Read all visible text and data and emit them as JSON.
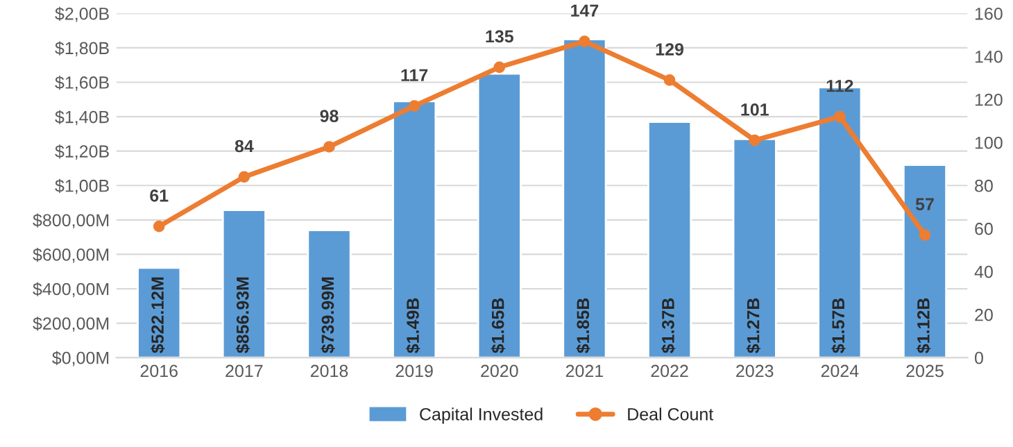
{
  "chart_data": {
    "type": "bar",
    "categories": [
      "2016",
      "2017",
      "2018",
      "2019",
      "2020",
      "2021",
      "2022",
      "2023",
      "2024",
      "2025"
    ],
    "series": [
      {
        "name": "Capital Invested",
        "color": "#5b9bd5",
        "values": [
          522120000,
          856930000,
          739990000,
          1490000000,
          1650000000,
          1850000000,
          1370000000,
          1270000000,
          1570000000,
          1120000000
        ],
        "value_labels": [
          "$522.12M",
          "$856.93M",
          "$739.99M",
          "$1.49B",
          "$1.65B",
          "$1.85B",
          "$1.37B",
          "$1.27B",
          "$1.57B",
          "$1.12B"
        ]
      },
      {
        "name": "Deal Count",
        "type": "line",
        "axis": "y2",
        "color": "#ed7d31",
        "marker": "circle",
        "values": [
          61,
          84,
          98,
          117,
          135,
          147,
          129,
          101,
          112,
          57
        ],
        "value_labels": [
          "61",
          "84",
          "98",
          "117",
          "135",
          "147",
          "129",
          "101",
          "112",
          "57"
        ]
      }
    ],
    "ylim": [
      0,
      2000000000
    ],
    "yticks": [
      {
        "value": 0,
        "label": "$0,00M"
      },
      {
        "value": 200000000,
        "label": "$200,00M"
      },
      {
        "value": 400000000,
        "label": "$400,00M"
      },
      {
        "value": 600000000,
        "label": "$600,00M"
      },
      {
        "value": 800000000,
        "label": "$800,00M"
      },
      {
        "value": 1000000000,
        "label": "$1,00B"
      },
      {
        "value": 1200000000,
        "label": "$1,20B"
      },
      {
        "value": 1400000000,
        "label": "$1,40B"
      },
      {
        "value": 1600000000,
        "label": "$1,60B"
      },
      {
        "value": 1800000000,
        "label": "$1,80B"
      },
      {
        "value": 2000000000,
        "label": "$2,00B"
      }
    ],
    "y2lim": [
      0,
      160
    ],
    "y2ticks": [
      0,
      20,
      40,
      60,
      80,
      100,
      120,
      140,
      160
    ],
    "grid": "y",
    "legend": "bottom"
  }
}
